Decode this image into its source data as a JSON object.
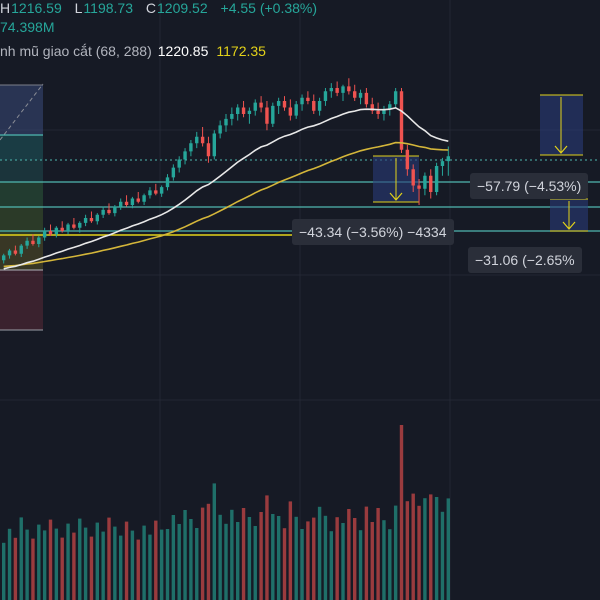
{
  "legend": {
    "high_label": "H",
    "high": "1216.59",
    "low_label": "L",
    "low": "1198.73",
    "close_label": "C",
    "close": "1209.52",
    "change": "+4.55 (+0.38%)",
    "volume": "74.398M",
    "indicator_name": "nh mũ giao cắt (68, 288)",
    "indicator_value_1": "1220.85",
    "indicator_value_2": "1172.35"
  },
  "measure_tags": {
    "tag_1": "−57.79 (−4.53%)",
    "tag_2": "−43.34 (−3.56%) −4334",
    "tag_3": "−31.06 (−2.65%"
  },
  "colors": {
    "up": "#26a69a",
    "down": "#ef5350",
    "ema_fast": "#e8e8e8",
    "ema_slow": "#d4b63a",
    "background": "#161a25",
    "fib_line": "#4fb8b0"
  },
  "chart_data": {
    "type": "candlestick",
    "series": [
      {
        "name": "price",
        "candles": [
          [
            1146,
            1150,
            1144,
            1149
          ],
          [
            1149,
            1153,
            1147,
            1152
          ],
          [
            1152,
            1155,
            1149,
            1150
          ],
          [
            1150,
            1156,
            1148,
            1155
          ],
          [
            1155,
            1160,
            1153,
            1158
          ],
          [
            1158,
            1162,
            1155,
            1156
          ],
          [
            1156,
            1161,
            1154,
            1160
          ],
          [
            1160,
            1166,
            1158,
            1164
          ],
          [
            1164,
            1168,
            1161,
            1162
          ],
          [
            1162,
            1167,
            1160,
            1166
          ],
          [
            1166,
            1170,
            1163,
            1164
          ],
          [
            1164,
            1169,
            1162,
            1168
          ],
          [
            1168,
            1172,
            1165,
            1166
          ],
          [
            1166,
            1170,
            1163,
            1169
          ],
          [
            1169,
            1174,
            1167,
            1172
          ],
          [
            1172,
            1176,
            1169,
            1170
          ],
          [
            1170,
            1175,
            1168,
            1174
          ],
          [
            1174,
            1179,
            1172,
            1177
          ],
          [
            1177,
            1181,
            1174,
            1175
          ],
          [
            1175,
            1180,
            1173,
            1179
          ],
          [
            1179,
            1184,
            1177,
            1182
          ],
          [
            1182,
            1186,
            1179,
            1180
          ],
          [
            1180,
            1185,
            1178,
            1184
          ],
          [
            1184,
            1188,
            1181,
            1182
          ],
          [
            1182,
            1187,
            1180,
            1186
          ],
          [
            1186,
            1191,
            1184,
            1189
          ],
          [
            1189,
            1193,
            1186,
            1187
          ],
          [
            1187,
            1192,
            1185,
            1191
          ],
          [
            1191,
            1199,
            1189,
            1197
          ],
          [
            1197,
            1205,
            1195,
            1203
          ],
          [
            1203,
            1210,
            1200,
            1208
          ],
          [
            1208,
            1215,
            1205,
            1213
          ],
          [
            1213,
            1220,
            1210,
            1218
          ],
          [
            1218,
            1225,
            1215,
            1222
          ],
          [
            1222,
            1228,
            1216,
            1218
          ],
          [
            1218,
            1222,
            1206,
            1210
          ],
          [
            1210,
            1226,
            1208,
            1224
          ],
          [
            1224,
            1232,
            1221,
            1229
          ],
          [
            1229,
            1236,
            1225,
            1233
          ],
          [
            1233,
            1240,
            1229,
            1236
          ],
          [
            1236,
            1242,
            1232,
            1240
          ],
          [
            1240,
            1244,
            1234,
            1236
          ],
          [
            1236,
            1240,
            1230,
            1238
          ],
          [
            1238,
            1245,
            1235,
            1243
          ],
          [
            1243,
            1247,
            1237,
            1240
          ],
          [
            1240,
            1244,
            1226,
            1230
          ],
          [
            1230,
            1243,
            1228,
            1241
          ],
          [
            1241,
            1246,
            1236,
            1244
          ],
          [
            1244,
            1247,
            1238,
            1240
          ],
          [
            1240,
            1245,
            1232,
            1235
          ],
          [
            1235,
            1244,
            1233,
            1242
          ],
          [
            1242,
            1248,
            1238,
            1246
          ],
          [
            1246,
            1250,
            1242,
            1244
          ],
          [
            1244,
            1248,
            1236,
            1238
          ],
          [
            1238,
            1246,
            1235,
            1244
          ],
          [
            1244,
            1252,
            1241,
            1250
          ],
          [
            1250,
            1255,
            1246,
            1252
          ],
          [
            1252,
            1256,
            1247,
            1249
          ],
          [
            1249,
            1254,
            1244,
            1253
          ],
          [
            1253,
            1258,
            1248,
            1250
          ],
          [
            1250,
            1254,
            1244,
            1246
          ],
          [
            1246,
            1251,
            1242,
            1249
          ],
          [
            1249,
            1252,
            1240,
            1242
          ],
          [
            1242,
            1246,
            1236,
            1238
          ],
          [
            1238,
            1243,
            1233,
            1236
          ],
          [
            1236,
            1241,
            1232,
            1239
          ],
          [
            1239,
            1244,
            1235,
            1242
          ],
          [
            1242,
            1252,
            1240,
            1250
          ],
          [
            1250,
            1252,
            1212,
            1214
          ],
          [
            1214,
            1217,
            1198,
            1202
          ],
          [
            1202,
            1205,
            1188,
            1192
          ],
          [
            1192,
            1196,
            1180,
            1190
          ],
          [
            1190,
            1200,
            1186,
            1198
          ],
          [
            1198,
            1202,
            1184,
            1188
          ],
          [
            1188,
            1206,
            1186,
            1204
          ],
          [
            1204,
            1209,
            1198,
            1207
          ],
          [
            1207,
            1216,
            1198,
            1210
          ]
        ]
      }
    ],
    "ylim": [
      1100,
      1280
    ],
    "grid": true
  }
}
